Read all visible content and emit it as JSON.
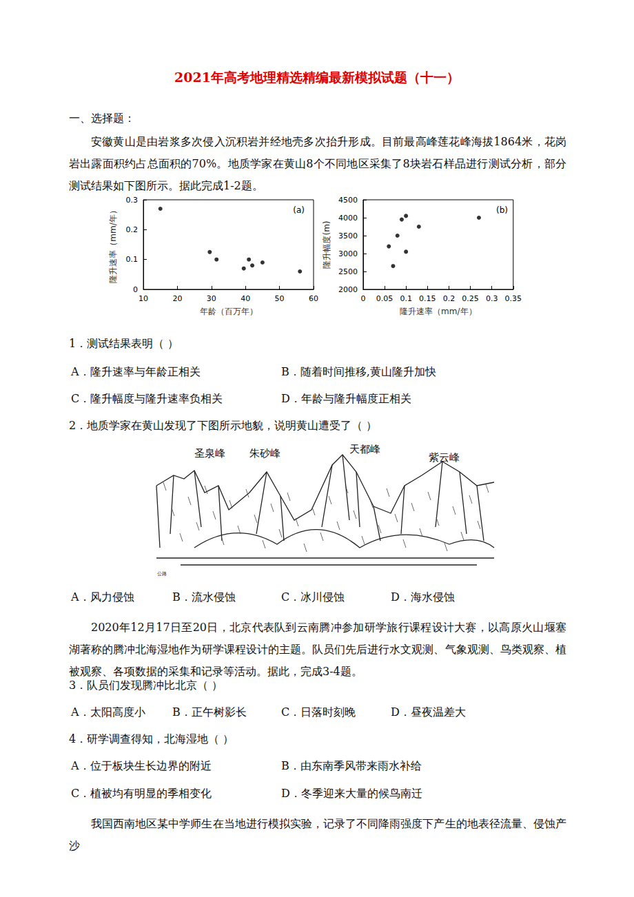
{
  "title": "2021年高考地理精选精编最新模拟试题（十一）",
  "section": "一、选择题：",
  "passage1": "安徽黄山是由岩浆多次侵入沉积岩并经地壳多次抬升形成。目前最高峰莲花峰海拔1864米，花岗岩出露面积约占总面积的70%。地质学家在黄山8个不同地区采集了8块岩石样品进行测试分析，部分测试结果如下图所示。据此完成1-2题。",
  "chart_data": [
    {
      "type": "scatter",
      "title": "(a)",
      "x_label": "年龄（百万年）",
      "y_label": "隆升速率（mm/年）",
      "x": [
        15,
        29.5,
        31.5,
        39.5,
        41,
        42,
        45,
        56
      ],
      "values": [
        0.27,
        0.125,
        0.1,
        0.07,
        0.1,
        0.08,
        0.09,
        0.06
      ],
      "xlim": [
        10,
        60
      ],
      "xticks": [
        10,
        20,
        30,
        40,
        50,
        60
      ],
      "ylim": [
        0,
        0.3
      ],
      "yticks": [
        0,
        0.1,
        0.2,
        0.3
      ],
      "grid": false,
      "color": "#000000",
      "marker": "circle"
    },
    {
      "type": "scatter",
      "title": "(b)",
      "x_label": "隆升速率（mm/年）",
      "y_label": "隆升幅度(m)",
      "x": [
        0.06,
        0.07,
        0.08,
        0.09,
        0.1,
        0.1,
        0.13,
        0.27
      ],
      "values": [
        3200,
        2650,
        3500,
        3950,
        4050,
        3050,
        3750,
        4000
      ],
      "xlim": [
        0,
        0.35
      ],
      "xticks": [
        0,
        0.05,
        0.1,
        0.15,
        0.2,
        0.25,
        0.3,
        0.35
      ],
      "ylim": [
        2000,
        4500
      ],
      "yticks": [
        2000,
        2500,
        3000,
        3500,
        4000,
        4500
      ],
      "grid": false,
      "color": "#000000",
      "marker": "circle"
    }
  ],
  "questions": [
    {
      "stem": "1．测试结果表明（    ）",
      "options": [
        "A．隆升速率与年龄正相关",
        "B．随着时间推移,黄山隆升加快",
        "C．隆升幅度与隆升速率负相关",
        "D．年龄与隆升幅度正相关"
      ]
    },
    {
      "stem": "2．地质学家在黄山发现了下图所示地貌，说明黄山遭受了（    ）",
      "figure": {
        "peaks": [
          "圣泉峰",
          "朱砂峰",
          "天都峰",
          "紫云峰"
        ],
        "road": "公路"
      },
      "options": [
        "A．风力侵蚀",
        "B．流水侵蚀",
        "C．冰川侵蚀",
        "D．海水侵蚀"
      ]
    },
    {
      "stem": "3．队员们发现腾冲比北京（    ）",
      "options": [
        "A．太阳高度小",
        "B．正午树影长",
        "C．日落时刻晚",
        "D．昼夜温差大"
      ]
    },
    {
      "stem": "4．研学调查得知，北海湿地（    ）",
      "options": [
        "A．位于板块生长边界的附近",
        "B．由东南季风带来雨水补给",
        "C．植被均有明显的季相变化",
        "D．冬季迎来大量的候鸟南迁"
      ]
    }
  ],
  "passage2": "2020年12月17日至20日，北京代表队到云南腾冲参加研学旅行课程设计大赛，以高原火山堰塞湖著称的腾冲北海湿地作为研学课程设计的主题。队员们先后进行水文观测、气象观测、鸟类观察、植被观察、各项数据的采集和记录等活动。据此，完成3-4题。",
  "passage3": "我国西南地区某中学师生在当地进行模拟实验，记录了不同降雨强度下产生的地表径流量、侵蚀产沙"
}
